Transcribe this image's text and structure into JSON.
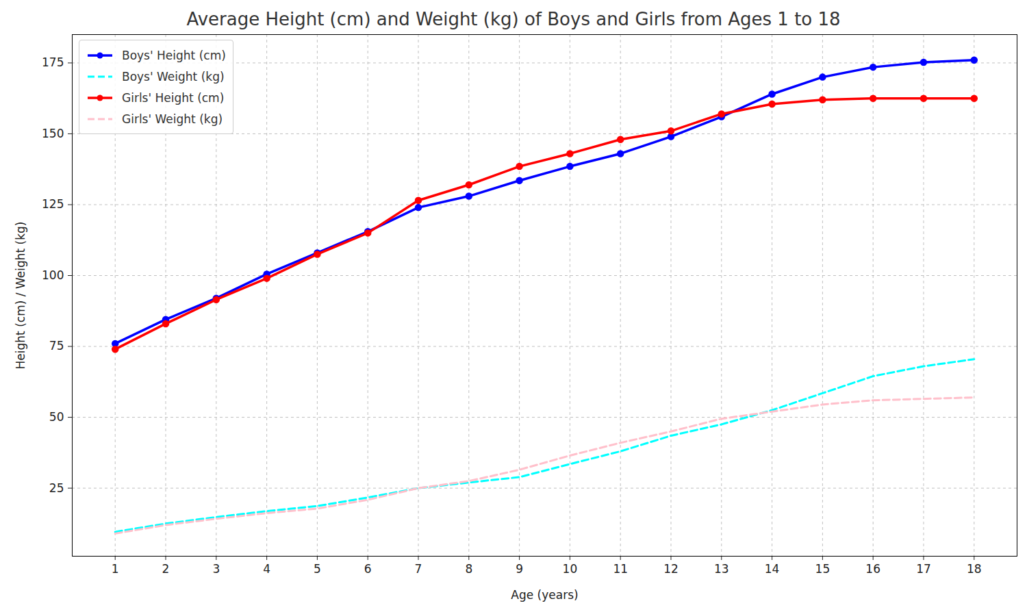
{
  "chart_data": {
    "type": "line",
    "title": "Average Height (cm) and Weight (kg) of Boys and Girls from Ages 1 to 18",
    "x_label": "Age (years)",
    "y_label": "Height (cm) / Weight (kg)",
    "x": [
      1,
      2,
      3,
      4,
      5,
      6,
      7,
      8,
      9,
      10,
      11,
      12,
      13,
      14,
      15,
      16,
      17,
      18
    ],
    "series": [
      {
        "name": "Boys' Height (cm)",
        "color": "blue",
        "marker": "o",
        "line_style": "solid",
        "values": [
          76,
          84.5,
          92,
          100.5,
          108,
          115.5,
          124,
          128,
          133.5,
          138.5,
          143,
          149,
          156,
          164,
          170,
          173.5,
          175.2,
          176
        ]
      },
      {
        "name": "Boys' Weight (kg)",
        "color": "cyan",
        "marker": "none",
        "line_style": "dashed",
        "values": [
          9.6,
          12.5,
          14.8,
          16.9,
          18.7,
          21.7,
          25,
          27,
          28.9,
          33.5,
          38,
          43.5,
          47.5,
          52.5,
          58.5,
          64.5,
          68,
          70.5
        ]
      },
      {
        "name": "Girls' Height (cm)",
        "color": "red",
        "marker": "o",
        "line_style": "solid",
        "values": [
          74,
          83,
          91.5,
          99,
          107.5,
          115,
          126.5,
          132,
          138.5,
          143,
          148,
          151,
          157,
          160.5,
          162,
          162.5,
          162.5,
          162.5
        ]
      },
      {
        "name": "Girls' Weight (kg)",
        "color": "pink",
        "marker": "none",
        "line_style": "dashed",
        "values": [
          9,
          12,
          14.2,
          16.2,
          17.8,
          20.9,
          25,
          27.5,
          31.5,
          36.5,
          41,
          45,
          49.5,
          52,
          54.5,
          56,
          56.5,
          57
        ]
      }
    ],
    "xlim": [
      0.15,
      18.85
    ],
    "xticks": [
      1,
      2,
      3,
      4,
      5,
      6,
      7,
      8,
      9,
      10,
      11,
      12,
      13,
      14,
      15,
      16,
      17,
      18
    ],
    "ylim": [
      1,
      185
    ],
    "yticks": [
      25,
      50,
      75,
      100,
      125,
      150,
      175
    ],
    "grid": true,
    "legend": "upper left"
  }
}
